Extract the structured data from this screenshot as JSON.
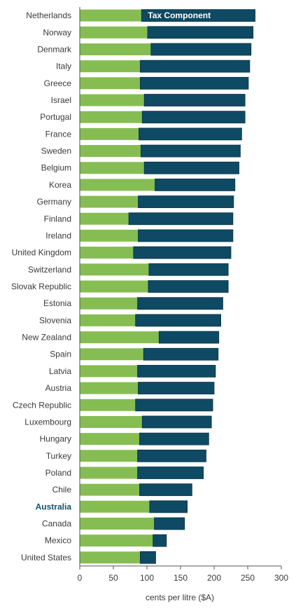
{
  "chart_data": {
    "type": "bar",
    "orientation": "horizontal",
    "stacked": true,
    "xlabel": "cents per litre ($A)",
    "xlim": [
      0,
      300
    ],
    "xticks": [
      0,
      50,
      100,
      150,
      200,
      250,
      300
    ],
    "grid": false,
    "highlight_category": "Australia",
    "categories": [
      "Netherlands",
      "Norway",
      "Denmark",
      "Italy",
      "Greece",
      "Israel",
      "Portugal",
      "France",
      "Sweden",
      "Belgium",
      "Korea",
      "Germany",
      "Finland",
      "Ireland",
      "United Kingdom",
      "Switzerland",
      "Slovak Republic",
      "Estonia",
      "Slovenia",
      "New Zealand",
      "Spain",
      "Latvia",
      "Austria",
      "Czech Republic",
      "Luxembourg",
      "Hungary",
      "Turkey",
      "Poland",
      "Chile",
      "Australia",
      "Canada",
      "Mexico",
      "United States"
    ],
    "series": [
      {
        "name": "",
        "color": "#86bd52",
        "values": [
          92,
          101,
          106,
          90,
          90,
          96,
          93,
          88,
          91,
          96,
          112,
          87,
          73,
          87,
          80,
          103,
          102,
          86,
          83,
          118,
          95,
          86,
          87,
          83,
          93,
          89,
          86,
          86,
          89,
          104,
          111,
          109,
          90
        ]
      },
      {
        "name": "Tax Component",
        "color": "#0e4a63",
        "values": [
          169,
          157,
          149,
          163,
          161,
          150,
          153,
          153,
          148,
          141,
          119,
          142,
          155,
          141,
          145,
          118,
          119,
          127,
          127,
          89,
          111,
          116,
          113,
          115,
          103,
          103,
          102,
          98,
          78,
          56,
          45,
          20,
          23
        ]
      }
    ]
  }
}
